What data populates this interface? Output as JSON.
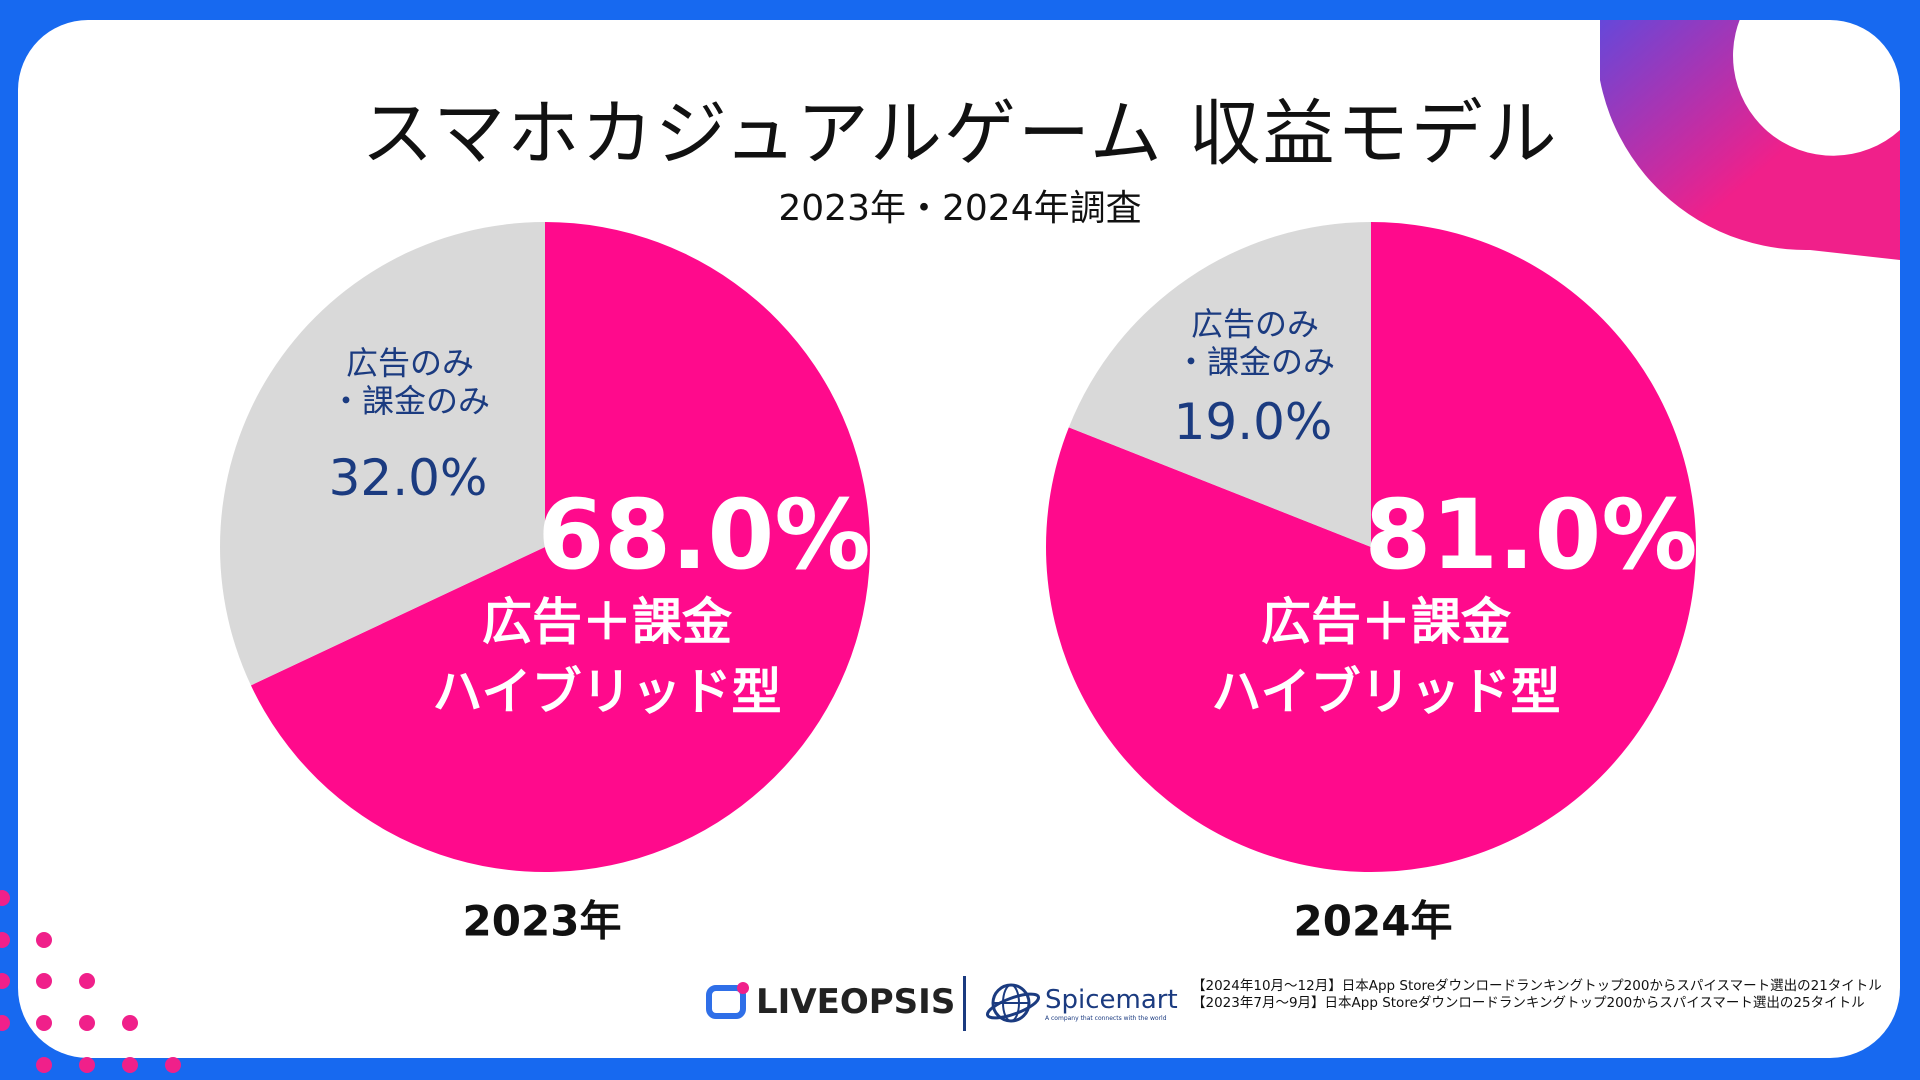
{
  "title": "スマホカジュアルゲーム 収益モデル",
  "subtitle": "2023年・2024年調査",
  "colors": {
    "hybrid": "#ff0a8c",
    "other": "#d9d9d9",
    "background": "#1769f0",
    "label_dark": "#1b3b80"
  },
  "chart_data": [
    {
      "type": "pie",
      "label": "2023年",
      "slices": [
        {
          "name": "広告＋課金 ハイブリッド型",
          "name_lines": [
            "広告＋課金",
            "ハイブリッド型"
          ],
          "value": 68.0,
          "label": "68.0%"
        },
        {
          "name": "広告のみ・課金のみ",
          "name_lines": [
            "広告のみ",
            "・課金のみ"
          ],
          "value": 32.0,
          "label": "32.0%"
        }
      ]
    },
    {
      "type": "pie",
      "label": "2024年",
      "slices": [
        {
          "name": "広告＋課金 ハイブリッド型",
          "name_lines": [
            "広告＋課金",
            "ハイブリッド型"
          ],
          "value": 81.0,
          "label": "81.0%"
        },
        {
          "name": "広告のみ・課金のみ",
          "name_lines": [
            "広告のみ",
            "・課金のみ"
          ],
          "value": 19.0,
          "label": "19.0%"
        }
      ]
    }
  ],
  "footnotes": [
    "【2024年10月～12月】日本App Storeダウンロードランキングトップ200からスパイスマート選出の21タイトル",
    "【2023年7月～9月】日本App Storeダウンロードランキングトップ200からスパイスマート選出の25タイトル"
  ],
  "logos": {
    "liveopsis": "LIVEOPSIS",
    "spicemart": "Spicemart",
    "spicemart_tagline": "A company that connects with the world"
  }
}
